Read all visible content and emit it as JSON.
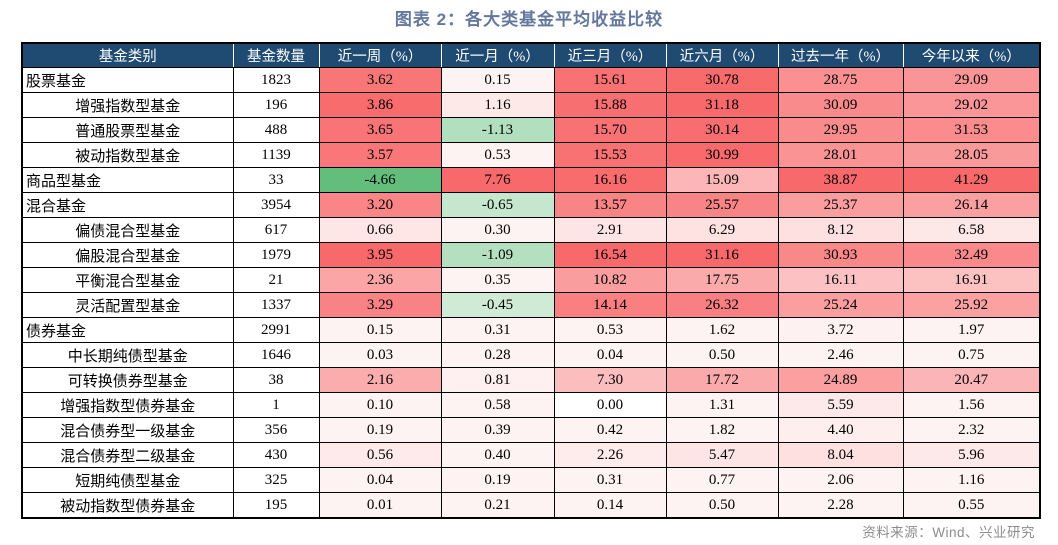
{
  "title": "图表 2：各大类基金平均收益比较",
  "source": "资料来源：Wind、兴业研究",
  "colors": {
    "title_text": "#64789E",
    "header_bg": "#1F4B73",
    "header_text": "#FFFFFF",
    "source_text": "#8C8C8C",
    "border": "#000000",
    "scale_max_color": "#F8696B",
    "scale_min_color": "#63BE7B",
    "scale_mid_color": "#FFFFFF",
    "scale_global_min": -4.66
  },
  "chart_data": {
    "type": "table",
    "title": "图表 2：各大类基金平均收益比较",
    "source": "资料来源：Wind、兴业研究",
    "color_encoding": "per-column heatmap: deepest red = column max, white = 0, green = negative values (deepest green at -4.66)",
    "columns": [
      "基金类别",
      "基金数量",
      "近一周（%）",
      "近一月（%）",
      "近三月（%）",
      "近六月（%）",
      "过去一年（%）",
      "今年以来（%）"
    ],
    "rows": [
      {
        "name": "股票基金",
        "indent": 0,
        "count": "1823",
        "values": [
          "3.62",
          "0.15",
          "15.61",
          "30.78",
          "28.75",
          "29.09"
        ]
      },
      {
        "name": "增强指数型基金",
        "indent": 1,
        "count": "196",
        "values": [
          "3.86",
          "1.16",
          "15.88",
          "31.18",
          "30.09",
          "29.02"
        ]
      },
      {
        "name": "普通股票型基金",
        "indent": 1,
        "count": "488",
        "values": [
          "3.65",
          "-1.13",
          "15.70",
          "30.14",
          "29.95",
          "31.53"
        ]
      },
      {
        "name": "被动指数型基金",
        "indent": 1,
        "count": "1139",
        "values": [
          "3.57",
          "0.53",
          "15.53",
          "30.99",
          "28.01",
          "28.05"
        ]
      },
      {
        "name": "商品型基金",
        "indent": 0,
        "count": "33",
        "values": [
          "-4.66",
          "7.76",
          "16.16",
          "15.09",
          "38.87",
          "41.29"
        ]
      },
      {
        "name": "混合基金",
        "indent": 0,
        "count": "3954",
        "values": [
          "3.20",
          "-0.65",
          "13.57",
          "25.57",
          "25.37",
          "26.14"
        ]
      },
      {
        "name": "偏债混合型基金",
        "indent": 1,
        "count": "617",
        "values": [
          "0.66",
          "0.30",
          "2.91",
          "6.29",
          "8.12",
          "6.58"
        ]
      },
      {
        "name": "偏股混合型基金",
        "indent": 1,
        "count": "1979",
        "values": [
          "3.95",
          "-1.09",
          "16.54",
          "31.16",
          "30.93",
          "32.49"
        ]
      },
      {
        "name": "平衡混合型基金",
        "indent": 1,
        "count": "21",
        "values": [
          "2.36",
          "0.35",
          "10.82",
          "17.75",
          "16.11",
          "16.91"
        ]
      },
      {
        "name": "灵活配置型基金",
        "indent": 1,
        "count": "1337",
        "values": [
          "3.29",
          "-0.45",
          "14.14",
          "26.32",
          "25.24",
          "25.92"
        ]
      },
      {
        "name": "债券基金",
        "indent": 0,
        "count": "2991",
        "values": [
          "0.15",
          "0.31",
          "0.53",
          "1.62",
          "3.72",
          "1.97"
        ]
      },
      {
        "name": "中长期纯债型基金",
        "indent": 1,
        "count": "1646",
        "values": [
          "0.03",
          "0.28",
          "0.04",
          "0.50",
          "2.46",
          "0.75"
        ]
      },
      {
        "name": "可转换债券型基金",
        "indent": 1,
        "count": "38",
        "values": [
          "2.16",
          "0.81",
          "7.30",
          "17.72",
          "24.89",
          "20.47"
        ]
      },
      {
        "name": "增强指数型债券基金",
        "indent": 1,
        "count": "1",
        "values": [
          "0.10",
          "0.58",
          "0.00",
          "1.31",
          "5.59",
          "1.56"
        ]
      },
      {
        "name": "混合债券型一级基金",
        "indent": 1,
        "count": "356",
        "values": [
          "0.19",
          "0.39",
          "0.42",
          "1.82",
          "4.40",
          "2.32"
        ]
      },
      {
        "name": "混合债券型二级基金",
        "indent": 1,
        "count": "430",
        "values": [
          "0.56",
          "0.40",
          "2.26",
          "5.47",
          "8.04",
          "5.96"
        ]
      },
      {
        "name": "短期纯债型基金",
        "indent": 1,
        "count": "325",
        "values": [
          "0.04",
          "0.19",
          "0.31",
          "0.77",
          "2.06",
          "1.16"
        ]
      },
      {
        "name": "被动指数型债券基金",
        "indent": 1,
        "count": "195",
        "values": [
          "0.01",
          "0.21",
          "0.14",
          "0.50",
          "2.28",
          "0.55"
        ]
      }
    ]
  }
}
